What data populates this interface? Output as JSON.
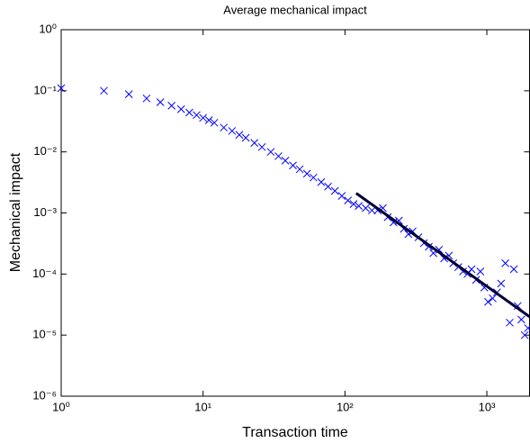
{
  "chart_data": {
    "type": "scatter",
    "title": "Average mechanical impact",
    "xlabel": "Transaction time",
    "ylabel": "Mechanical impact",
    "xscale": "log",
    "yscale": "log",
    "xlim": [
      1,
      2000
    ],
    "ylim": [
      1e-06,
      1
    ],
    "xticks": [
      {
        "value": 1,
        "label": "10⁰"
      },
      {
        "value": 10,
        "label": "10¹"
      },
      {
        "value": 100,
        "label": "10²"
      },
      {
        "value": 1000,
        "label": "10³"
      }
    ],
    "yticks": [
      {
        "value": 1e-06,
        "label": "10⁻⁶"
      },
      {
        "value": 1e-05,
        "label": "10⁻⁵"
      },
      {
        "value": 0.0001,
        "label": "10⁻⁴"
      },
      {
        "value": 0.001,
        "label": "10⁻³"
      },
      {
        "value": 0.01,
        "label": "10⁻²"
      },
      {
        "value": 0.1,
        "label": "10⁻¹"
      },
      {
        "value": 1,
        "label": "10⁰"
      }
    ],
    "series": [
      {
        "style": "x",
        "color": "#0000ff",
        "x": [
          1,
          2,
          3,
          4,
          5,
          6,
          7,
          8,
          9,
          10,
          11,
          12,
          14,
          16,
          18,
          20,
          23,
          26,
          30,
          34,
          38,
          43,
          48,
          54,
          60,
          68,
          76,
          85,
          95,
          105,
          115,
          125,
          140,
          155,
          170,
          185,
          200,
          220,
          240,
          260,
          280,
          300,
          330,
          360,
          390,
          420,
          460,
          500,
          540,
          580,
          630,
          680,
          730,
          780,
          840,
          900,
          960,
          1020,
          1100,
          1180,
          1260,
          1350,
          1450,
          1550,
          1650,
          1750,
          1850,
          1950
        ],
        "values": [
          0.11,
          0.1,
          0.088,
          0.075,
          0.065,
          0.057,
          0.05,
          0.044,
          0.04,
          0.036,
          0.033,
          0.03,
          0.025,
          0.022,
          0.019,
          0.017,
          0.014,
          0.012,
          0.01,
          0.0085,
          0.0072,
          0.006,
          0.0052,
          0.0044,
          0.0038,
          0.0032,
          0.0027,
          0.0023,
          0.0019,
          0.0016,
          0.0014,
          0.0013,
          0.0012,
          0.0011,
          0.0011,
          0.0012,
          0.00085,
          0.0007,
          0.00075,
          0.00055,
          0.00045,
          0.0005,
          0.0004,
          0.00032,
          0.00028,
          0.00022,
          0.00025,
          0.00018,
          0.0002,
          0.00015,
          0.00013,
          0.00011,
          0.0001,
          0.00012,
          8e-05,
          0.00011,
          6e-05,
          3.5e-05,
          4e-05,
          5e-05,
          7e-05,
          0.00015,
          1.6e-05,
          0.00012,
          3e-05,
          1.8e-05,
          1e-05,
          1.3e-05
        ]
      },
      {
        "style": "line",
        "color": "#000033",
        "x": [
          120,
          2000
        ],
        "values": [
          0.0021,
          2e-05
        ]
      }
    ]
  }
}
